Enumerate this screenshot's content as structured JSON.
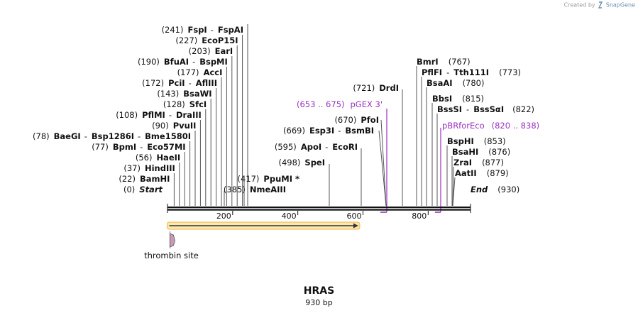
{
  "credit": {
    "created_by": "Created by",
    "brand": "SnapGene"
  },
  "sequence": {
    "name": "HRAS",
    "length_label": "930 bp",
    "length": 930
  },
  "axis": {
    "ticks": [
      "200",
      "400",
      "600",
      "800"
    ],
    "tick_values": [
      200,
      400,
      600,
      800
    ]
  },
  "left_sites": [
    {
      "id": "start",
      "pos": 0,
      "pos_label": "(0)",
      "names": [
        "Start"
      ],
      "italic": true
    },
    {
      "id": "bamhi",
      "pos": 22,
      "pos_label": "(22)",
      "names": [
        "BamHI"
      ]
    },
    {
      "id": "hindiii",
      "pos": 37,
      "pos_label": "(37)",
      "names": [
        "HindIII"
      ]
    },
    {
      "id": "haeii",
      "pos": 56,
      "pos_label": "(56)",
      "names": [
        "HaeII"
      ]
    },
    {
      "id": "bpmi",
      "pos": 77,
      "pos_label": "(77)",
      "names": [
        "BpmI",
        "Eco57MI"
      ]
    },
    {
      "id": "baegi",
      "pos": 78,
      "pos_label": "(78)",
      "names": [
        "BaeGI",
        "Bsp1286I",
        "Bme1580I"
      ]
    },
    {
      "id": "pvuii",
      "pos": 90,
      "pos_label": "(90)",
      "names": [
        "PvuII"
      ]
    },
    {
      "id": "pflmi",
      "pos": 108,
      "pos_label": "(108)",
      "names": [
        "PflMI",
        "DraIII"
      ]
    },
    {
      "id": "sfci",
      "pos": 128,
      "pos_label": "(128)",
      "names": [
        "SfcI"
      ]
    },
    {
      "id": "bsawi",
      "pos": 143,
      "pos_label": "(143)",
      "names": [
        "BsaWI"
      ]
    },
    {
      "id": "pcii",
      "pos": 172,
      "pos_label": "(172)",
      "names": [
        "PciI",
        "AflIII"
      ]
    },
    {
      "id": "acci",
      "pos": 177,
      "pos_label": "(177)",
      "names": [
        "AccI"
      ]
    },
    {
      "id": "bfuai",
      "pos": 190,
      "pos_label": "(190)",
      "names": [
        "BfuAI",
        "BspMI"
      ]
    },
    {
      "id": "eari",
      "pos": 203,
      "pos_label": "(203)",
      "names": [
        "EarI"
      ]
    },
    {
      "id": "ecop15i",
      "pos": 227,
      "pos_label": "(227)",
      "names": [
        "EcoP15I"
      ]
    },
    {
      "id": "fspi",
      "pos": 241,
      "pos_label": "(241)",
      "names": [
        "FspI",
        "FspAI"
      ]
    }
  ],
  "middle_sites": [
    {
      "id": "nmeaiii",
      "pos": 385,
      "pos_label": "(385)",
      "names": [
        "NmeAIII"
      ]
    },
    {
      "id": "ppumi",
      "pos": 417,
      "pos_label": "(417)",
      "names": [
        "PpuMI *"
      ]
    },
    {
      "id": "spei",
      "pos": 498,
      "pos_label": "(498)",
      "names": [
        "SpeI"
      ]
    },
    {
      "id": "apoi",
      "pos": 595,
      "pos_label": "(595)",
      "names": [
        "ApoI",
        "EcoRI"
      ]
    },
    {
      "id": "esp3i",
      "pos": 669,
      "pos_label": "(669)",
      "names": [
        "Esp3I",
        "BsmBI"
      ]
    },
    {
      "id": "pfoi",
      "pos": 670,
      "pos_label": "(670)",
      "names": [
        "PfoI"
      ]
    },
    {
      "id": "drdi",
      "pos": 721,
      "pos_label": "(721)",
      "names": [
        "DrdI"
      ]
    }
  ],
  "right_sites": [
    {
      "id": "bmri",
      "pos": 767,
      "pos_label": "(767)",
      "names": [
        "BmrI"
      ]
    },
    {
      "id": "pflfi",
      "pos": 773,
      "pos_label": "(773)",
      "names": [
        "PflFI",
        "Tth111I"
      ]
    },
    {
      "id": "bsaai",
      "pos": 780,
      "pos_label": "(780)",
      "names": [
        "BsaAI"
      ]
    },
    {
      "id": "bbsi",
      "pos": 815,
      "pos_label": "(815)",
      "names": [
        "BbsI"
      ]
    },
    {
      "id": "bsssi",
      "pos": 822,
      "pos_label": "(822)",
      "names": [
        "BssSI",
        "BssSαI"
      ]
    },
    {
      "id": "bsphi",
      "pos": 853,
      "pos_label": "(853)",
      "names": [
        "BspHI"
      ]
    },
    {
      "id": "bsahi",
      "pos": 876,
      "pos_label": "(876)",
      "names": [
        "BsaHI"
      ]
    },
    {
      "id": "zrai",
      "pos": 877,
      "pos_label": "(877)",
      "names": [
        "ZraI"
      ]
    },
    {
      "id": "aatii",
      "pos": 879,
      "pos_label": "(879)",
      "names": [
        "AatII"
      ]
    },
    {
      "id": "end",
      "pos": 930,
      "pos_label": "(930)",
      "names": [
        "End"
      ],
      "italic": true
    }
  ],
  "primers": [
    {
      "id": "pgex3",
      "name": "pGEX 3'",
      "range": "(653 .. 675)",
      "start": 653,
      "end": 675,
      "direction": "reverse"
    },
    {
      "id": "pbrforeco",
      "name": "pBRforEco",
      "range": "(820 .. 838)",
      "start": 820,
      "end": 838,
      "direction": "reverse"
    }
  ],
  "features": [
    {
      "id": "orf",
      "kind": "orf",
      "start": 1,
      "end": 588,
      "colors": {
        "fill": "#f2b640",
        "arrow": "#333333"
      }
    },
    {
      "id": "thrombin",
      "kind": "site",
      "name": "thrombin site",
      "start": 1,
      "end": 18,
      "colors": {
        "fill": "#c99ab4"
      }
    }
  ],
  "colors": {
    "backbone": "#111111",
    "lines": "#555555",
    "primer": "#9b30c0",
    "text": "#111111"
  }
}
